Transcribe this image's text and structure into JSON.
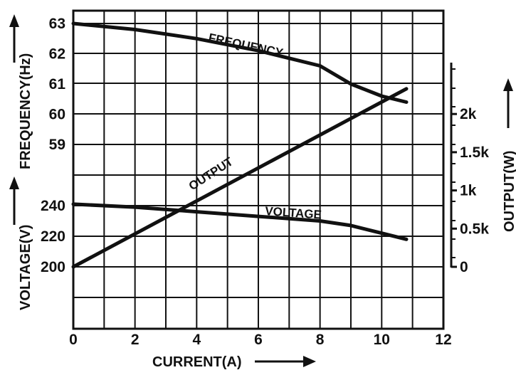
{
  "chart_data": {
    "type": "line",
    "grid": true,
    "x_axis": {
      "label": "CURRENT(A)",
      "range": [
        0,
        12
      ],
      "ticks": [
        0,
        2,
        4,
        6,
        8,
        10,
        12
      ]
    },
    "y_axes": {
      "frequency": {
        "label": "FREQUENCY(Hz)",
        "range": [
          58,
          63
        ],
        "ticks": [
          59,
          60,
          61,
          62,
          63
        ]
      },
      "voltage": {
        "label": "VOLTAGE(V)",
        "range": [
          180,
          240
        ],
        "ticks": [
          200,
          220,
          240
        ]
      },
      "output": {
        "label": "OUTPUT(W)",
        "side": "right",
        "range": [
          0,
          2500
        ],
        "ticks": [
          0,
          500,
          1000,
          1500,
          2000
        ],
        "tick_labels": [
          "0",
          "0.5k",
          "1k",
          "1.5k",
          "2k"
        ]
      }
    },
    "series": [
      {
        "name": "FREQUENCY",
        "axis": "frequency",
        "x": [
          0,
          2,
          4,
          6,
          8,
          9,
          10,
          10.8
        ],
        "y": [
          63,
          62.8,
          62.5,
          62.1,
          61.6,
          61.0,
          60.6,
          60.4
        ]
      },
      {
        "name": "VOLTAGE",
        "axis": "voltage",
        "x": [
          0,
          2,
          4,
          6,
          8,
          9,
          10,
          10.8
        ],
        "y": [
          241,
          239,
          236,
          233,
          230,
          227,
          222,
          218
        ]
      },
      {
        "name": "OUTPUT",
        "axis": "output",
        "x": [
          0,
          10.8
        ],
        "y": [
          0,
          2330
        ]
      }
    ]
  }
}
